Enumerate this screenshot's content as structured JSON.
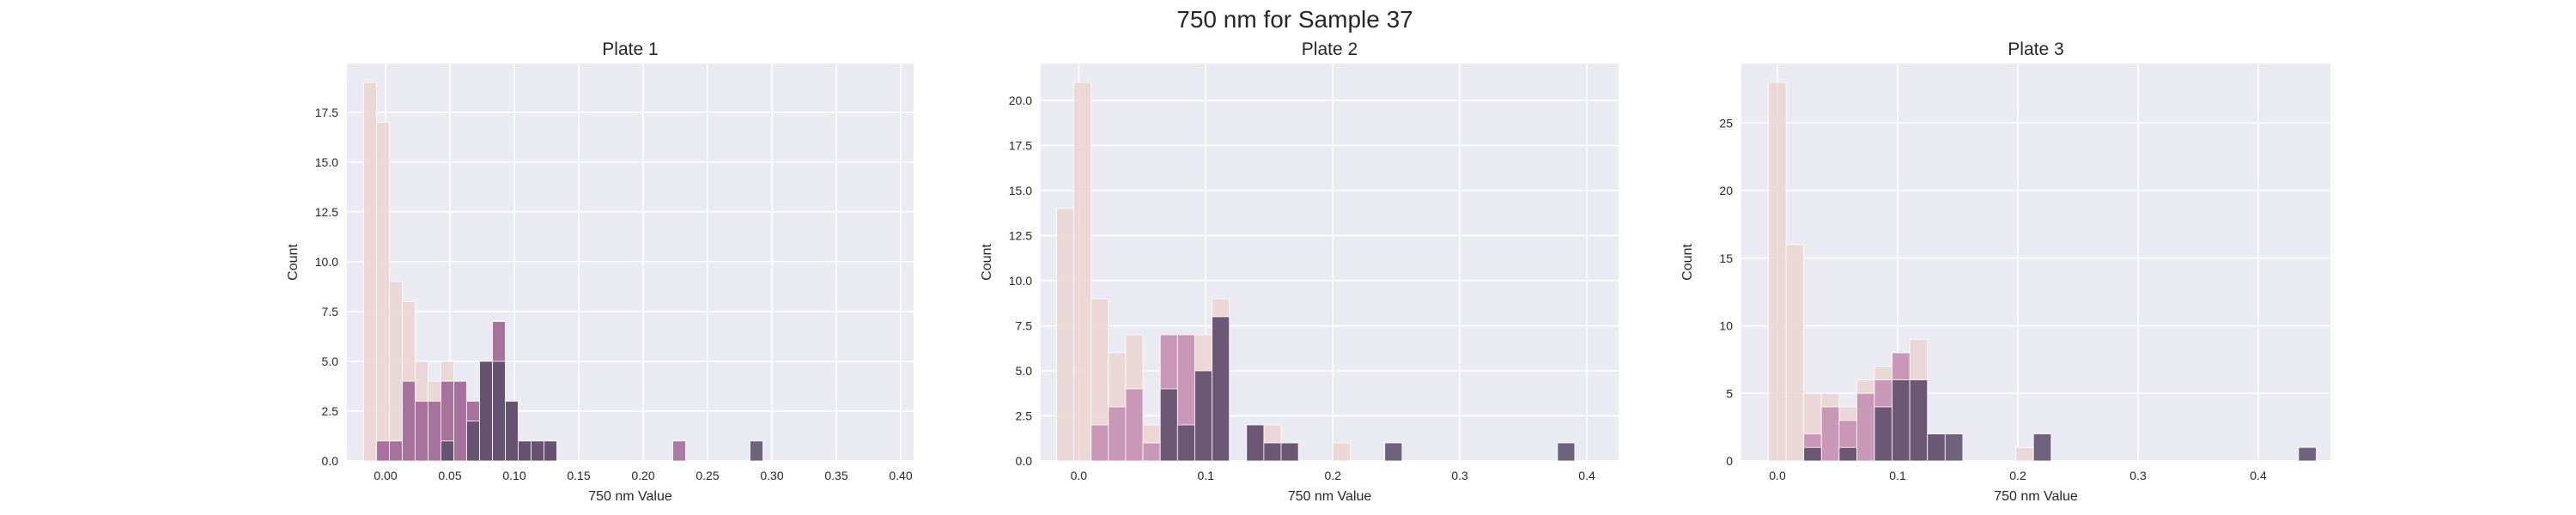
{
  "figure": {
    "title": "750 nm for Sample 37"
  },
  "chart_data": [
    {
      "type": "bar",
      "title": "Plate 1",
      "xlabel": "750 nm Value",
      "ylabel": "Count",
      "xlim": [
        -0.03,
        0.41
      ],
      "ylim": [
        0,
        19.95
      ],
      "xticks": [
        0.0,
        0.05,
        0.1,
        0.15,
        0.2,
        0.25,
        0.3,
        0.35,
        0.4
      ],
      "xtick_labels": [
        "0.00",
        "0.05",
        "0.10",
        "0.15",
        "0.20",
        "0.25",
        "0.30",
        "0.35",
        "0.40"
      ],
      "yticks": [
        0,
        2.5,
        5,
        7.5,
        10,
        12.5,
        15,
        17.5
      ],
      "ytick_labels": [
        "0.0",
        "2.5",
        "5.0",
        "7.5",
        "10.0",
        "12.5",
        "15.0",
        "17.5"
      ],
      "bin_start": -0.017,
      "bin_width": 0.01,
      "grid": true,
      "series": [
        {
          "color": "#ecd3d2",
          "values": [
            19,
            17,
            9,
            8,
            5,
            4,
            5,
            4,
            2,
            2,
            1,
            0,
            0,
            0,
            0,
            0,
            0,
            0,
            0,
            0,
            0,
            0,
            0,
            0,
            0,
            0,
            0,
            0,
            0,
            0,
            0,
            0,
            0,
            0,
            0,
            0,
            0,
            0,
            0,
            0,
            0
          ]
        },
        {
          "color": "#c48fb2",
          "values": [
            0,
            1,
            1,
            4,
            3,
            3,
            4,
            4,
            3,
            5,
            7,
            3,
            1,
            1,
            1,
            0,
            0,
            0,
            0,
            0,
            0,
            0,
            0,
            0,
            0,
            0,
            0,
            0,
            0,
            0,
            0,
            0,
            0,
            0,
            0,
            0,
            0,
            0,
            0,
            0,
            0
          ]
        },
        {
          "color": "#a26c97",
          "values": [
            0,
            1,
            1,
            4,
            3,
            3,
            4,
            4,
            3,
            5,
            7,
            3,
            1,
            1,
            1,
            0,
            0,
            0,
            0,
            0,
            0,
            0,
            0,
            0,
            1,
            0,
            0,
            0,
            0,
            0,
            0,
            0,
            0,
            0,
            0,
            0,
            0,
            0,
            0,
            0,
            0
          ]
        },
        {
          "color": "#5d4f6c",
          "values": [
            0,
            0,
            0,
            0,
            0,
            0,
            1,
            0,
            2,
            5,
            5,
            3,
            1,
            1,
            1,
            0,
            0,
            0,
            0,
            0,
            0,
            0,
            0,
            0,
            0,
            0,
            0,
            0,
            0,
            0,
            1
          ]
        }
      ]
    },
    {
      "type": "bar",
      "title": "Plate 2",
      "xlabel": "750 nm Value",
      "ylabel": "Count",
      "xlim": [
        -0.03,
        0.425
      ],
      "ylim": [
        0,
        22.05
      ],
      "xticks": [
        0.0,
        0.1,
        0.2,
        0.3,
        0.4
      ],
      "xtick_labels": [
        "0.0",
        "0.1",
        "0.2",
        "0.3",
        "0.4"
      ],
      "yticks": [
        0,
        2.5,
        5,
        7.5,
        10,
        12.5,
        15,
        17.5,
        20
      ],
      "ytick_labels": [
        "0.0",
        "2.5",
        "5.0",
        "7.5",
        "10.0",
        "12.5",
        "15.0",
        "17.5",
        "20.0"
      ],
      "bin_start": -0.0175,
      "bin_width": 0.0136,
      "grid": true,
      "series": [
        {
          "color": "#ecd3d2",
          "values": [
            14,
            21,
            9,
            6,
            7,
            2,
            7,
            7,
            7,
            9,
            0,
            2,
            2,
            1,
            0,
            0,
            1,
            0,
            0,
            0,
            0,
            0,
            0,
            0,
            0,
            0,
            0,
            0,
            0,
            0,
            0
          ]
        },
        {
          "color": "#c48fb2",
          "values": [
            0,
            0,
            2,
            3,
            4,
            1,
            7,
            7,
            5,
            8,
            0,
            2,
            1,
            1
          ]
        },
        {
          "color": "#5d4f6c",
          "values": [
            0,
            0,
            0,
            0,
            0,
            0,
            4,
            2,
            5,
            8,
            0,
            2,
            1,
            1,
            0,
            0,
            0,
            0,
            0,
            1,
            0,
            0,
            0,
            0,
            0,
            0,
            0,
            0,
            0,
            1
          ]
        }
      ]
    },
    {
      "type": "bar",
      "title": "Plate 3",
      "xlabel": "750 nm Value",
      "ylabel": "Count",
      "xlim": [
        -0.03,
        0.46
      ],
      "ylim": [
        0,
        29.4
      ],
      "xticks": [
        0.0,
        0.1,
        0.2,
        0.3,
        0.4
      ],
      "xtick_labels": [
        "0.0",
        "0.1",
        "0.2",
        "0.3",
        "0.4"
      ],
      "yticks": [
        0,
        5,
        10,
        15,
        20,
        25
      ],
      "ytick_labels": [
        "0",
        "5",
        "10",
        "15",
        "20",
        "25"
      ],
      "bin_start": -0.0075,
      "bin_width": 0.0147,
      "grid": true,
      "series": [
        {
          "color": "#ecd3d2",
          "values": [
            28,
            16,
            5,
            5,
            4,
            6,
            7,
            8,
            9,
            2,
            0,
            0,
            0,
            0,
            1,
            0,
            0,
            0,
            0,
            0,
            0,
            0,
            0,
            0,
            0,
            0,
            0,
            0,
            0,
            0,
            0
          ]
        },
        {
          "color": "#c48fb2",
          "values": [
            0,
            0,
            2,
            4,
            3,
            5,
            6,
            8,
            6,
            2,
            0,
            0,
            0,
            0,
            0,
            0,
            0,
            0,
            0,
            0,
            0,
            0,
            0,
            0,
            0,
            0,
            0,
            0,
            0,
            0,
            0
          ]
        },
        {
          "color": "#5d4f6c",
          "values": [
            0,
            0,
            1,
            0,
            1,
            0,
            4,
            6,
            6,
            2,
            2,
            0,
            0,
            0,
            0,
            2,
            0,
            0,
            0,
            0,
            0,
            0,
            0,
            0,
            0,
            0,
            0,
            0,
            0,
            0,
            1
          ]
        }
      ]
    }
  ]
}
